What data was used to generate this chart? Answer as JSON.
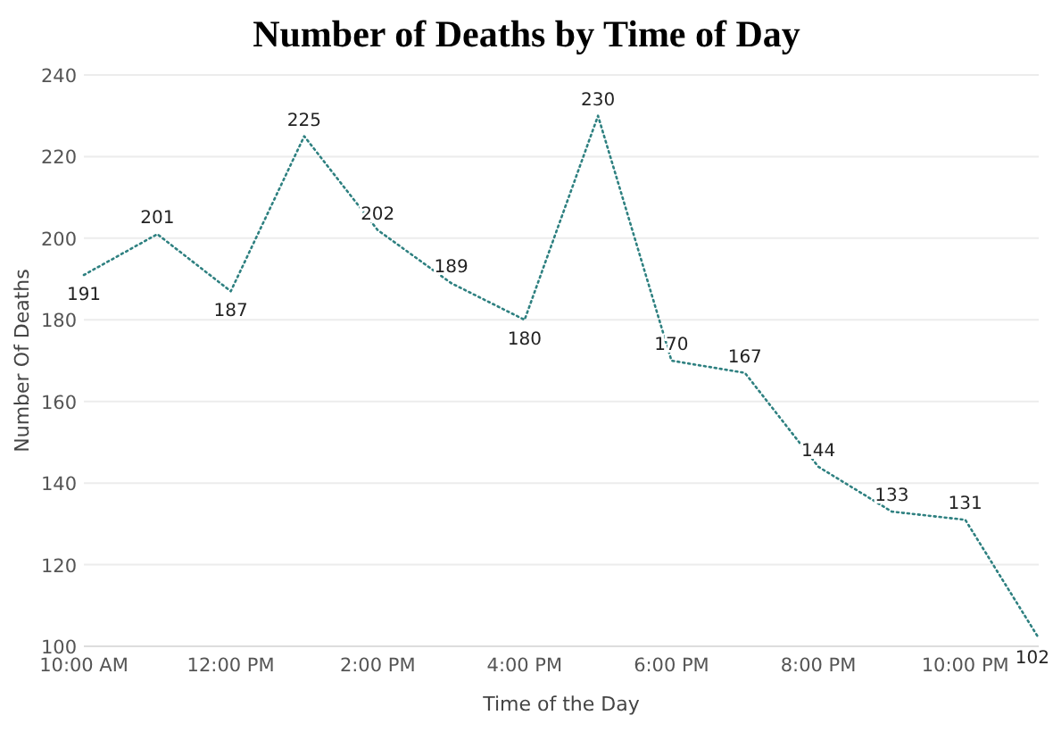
{
  "chart_data": {
    "type": "line",
    "title": "Number of Deaths by Time of Day",
    "xlabel": "Time of the Day",
    "ylabel": "Number Of Deaths",
    "x": [
      10,
      11,
      12,
      13,
      14,
      15,
      16,
      17,
      18,
      19,
      20,
      21,
      22,
      23
    ],
    "series": [
      {
        "color": "#2e8080",
        "values": [
          191,
          201,
          187,
          225,
          202,
          189,
          180,
          230,
          170,
          167,
          144,
          133,
          131,
          102
        ]
      }
    ],
    "xlim": [
      10,
      23
    ],
    "xticks": [
      {
        "value": 10,
        "label": "10:00 AM"
      },
      {
        "value": 12,
        "label": "12:00 PM"
      },
      {
        "value": 14,
        "label": "2:00 PM"
      },
      {
        "value": 16,
        "label": "4:00 PM"
      },
      {
        "value": 18,
        "label": "6:00 PM"
      },
      {
        "value": 20,
        "label": "8:00 PM"
      },
      {
        "value": 22,
        "label": "10:00 PM"
      }
    ],
    "ylim": [
      100,
      240
    ],
    "yticks": [
      100,
      120,
      140,
      160,
      180,
      200,
      220,
      240
    ],
    "grid": "y",
    "data_labels": true,
    "line_style": "dotted",
    "marker": "none"
  }
}
